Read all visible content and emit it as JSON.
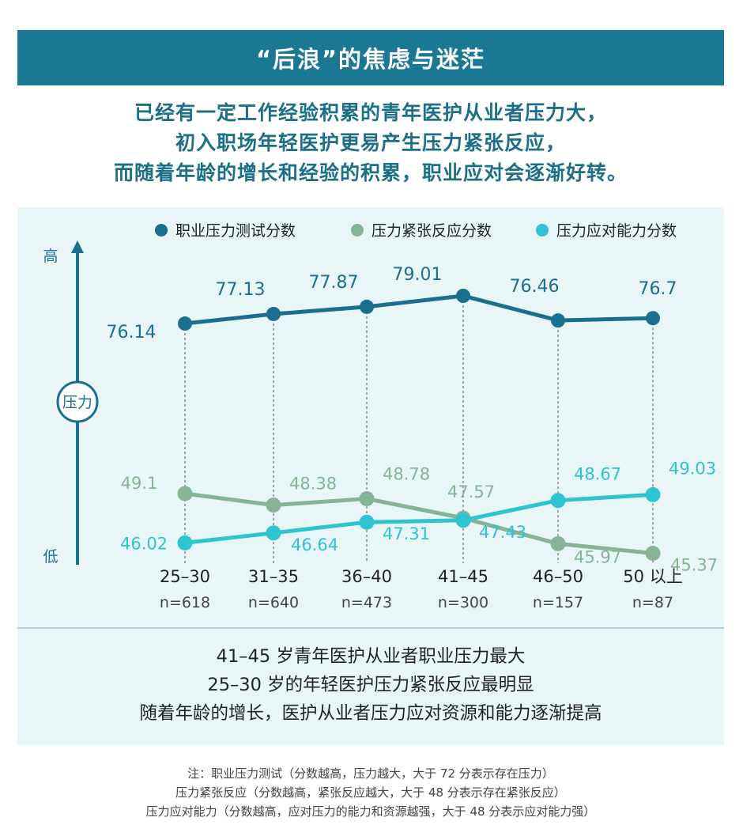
{
  "header": {
    "title": "“后浪”的焦虑与迷茫"
  },
  "lede": [
    "已经有一定工作经验积累的青年医护从业者压力大，",
    "初入职场年轻医护更易产生压力紧张反应，",
    "而随着年龄的增长和经验的积累，职业应对会逐渐好转。"
  ],
  "chart_data": {
    "type": "line",
    "categories": [
      "25–30",
      "31–35",
      "36–40",
      "41–45",
      "46–50",
      "50 以上"
    ],
    "sample_sizes": [
      "n=618",
      "n=640",
      "n=473",
      "n=300",
      "n=157",
      "n=87"
    ],
    "y_axis": {
      "label": "压力",
      "high_label": "高",
      "low_label": "低",
      "ticks": false
    },
    "legend_position": "top",
    "series": [
      {
        "name": "职业压力测试分数",
        "color": "#1b6f8e",
        "values": [
          76.14,
          77.13,
          77.87,
          79.01,
          76.46,
          76.7
        ],
        "labels": [
          "76.14",
          "77.13",
          "77.87",
          "79.01",
          "76.46",
          "76.7"
        ]
      },
      {
        "name": "压力紧张反应分数",
        "color": "#86b497",
        "values": [
          49.1,
          48.38,
          48.78,
          47.57,
          45.97,
          45.37
        ],
        "labels": [
          "49.1",
          "48.38",
          "48.78",
          "47.57",
          "45.97",
          "45.37"
        ]
      },
      {
        "name": "压力应对能力分数",
        "color": "#2fc4cf",
        "values": [
          46.02,
          46.64,
          47.31,
          47.43,
          48.67,
          49.03
        ],
        "labels": [
          "46.02",
          "46.64",
          "47.31",
          "47.43",
          "48.67",
          "49.03"
        ]
      }
    ],
    "grid": false
  },
  "summary": [
    "41–45 岁青年医护从业者职业压力最大",
    "25–30 岁的年轻医护压力紧张反应最明显",
    "随着年龄的增长，医护从业者压力应对资源和能力逐渐提高"
  ],
  "notes": [
    "注：职业压力测试（分数越高，压力越大，大于 72 分表示存在压力）",
    "压力紧张反应（分数越高，紧张反应越大，大于 48 分表示存在紧张反应）",
    "压力应对能力（分数越高，应对压力的能力和资源越强，大于 48 分表示应对能力强）"
  ]
}
